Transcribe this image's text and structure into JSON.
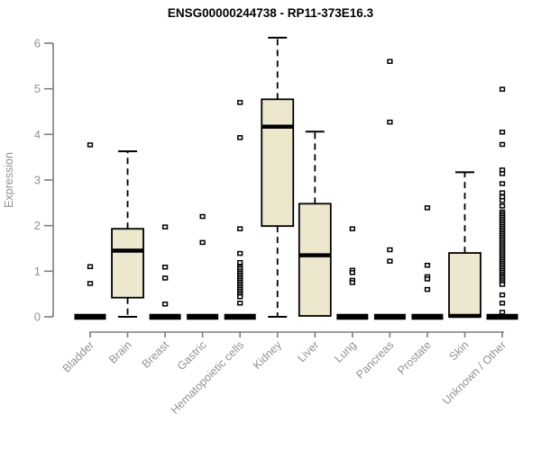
{
  "title": "ENSG00000244738 - RP11-373E16.3",
  "y_axis": {
    "label": "Expression"
  },
  "colors": {
    "box_fill": "#EDE7CE",
    "box_stroke": "#000000",
    "median": "#000000",
    "whisker": "#000000",
    "outlier_stroke": "#000000",
    "outlier_fill": "#ffffff",
    "axis_line": "#7d7d7d",
    "axis_text": "#929292",
    "title": "#000000",
    "background": "#ffffff"
  },
  "chart_data": {
    "type": "boxplot",
    "title": "ENSG00000244738 - RP11-373E16.3",
    "xlabel": "",
    "ylabel": "Expression",
    "ylim": [
      0,
      6
    ],
    "y_ticks": [
      0,
      1,
      2,
      3,
      4,
      5,
      6
    ],
    "grid": false,
    "legend": false,
    "categories": [
      "Bladder",
      "Brain",
      "Breast",
      "Gastric",
      "Hematopoietic cells",
      "Kidney",
      "Liver",
      "Lung",
      "Pancreas",
      "Prostate",
      "Skin",
      "Unknown / Other"
    ],
    "series": [
      {
        "name": "Bladder",
        "whisker_low": 0,
        "q1": 0,
        "median": 0,
        "q3": 0,
        "whisker_high": 0,
        "outliers": [
          3.77,
          1.1,
          0.73
        ]
      },
      {
        "name": "Brain",
        "whisker_low": 0,
        "q1": 0.42,
        "median": 1.45,
        "q3": 1.93,
        "whisker_high": 3.63,
        "outliers": []
      },
      {
        "name": "Breast",
        "whisker_low": 0,
        "q1": 0,
        "median": 0,
        "q3": 0,
        "whisker_high": 0,
        "outliers": [
          1.97,
          1.09,
          0.85,
          0.28
        ]
      },
      {
        "name": "Gastric",
        "whisker_low": 0,
        "q1": 0,
        "median": 0,
        "q3": 0,
        "whisker_high": 0,
        "outliers": [
          2.2,
          1.63
        ]
      },
      {
        "name": "Hematopoietic cells",
        "whisker_low": 0,
        "q1": 0,
        "median": 0,
        "q3": 0,
        "whisker_high": 0,
        "outliers": [
          4.7,
          3.93,
          1.93,
          1.39,
          1.19,
          1.09,
          1.05,
          1.0,
          0.96,
          0.92,
          0.88,
          0.84,
          0.8,
          0.76,
          0.72,
          0.68,
          0.64,
          0.6,
          0.56,
          0.52,
          0.48,
          0.44,
          0.3
        ]
      },
      {
        "name": "Kidney",
        "whisker_low": 0,
        "q1": 1.99,
        "median": 4.17,
        "q3": 4.77,
        "whisker_high": 6.12,
        "outliers": []
      },
      {
        "name": "Liver",
        "whisker_low": 0,
        "q1": 0.02,
        "median": 1.35,
        "q3": 2.48,
        "whisker_high": 4.06,
        "outliers": []
      },
      {
        "name": "Lung",
        "whisker_low": 0,
        "q1": 0,
        "median": 0,
        "q3": 0,
        "whisker_high": 0,
        "outliers": [
          1.93,
          1.02,
          0.97,
          0.8,
          0.75
        ]
      },
      {
        "name": "Pancreas",
        "whisker_low": 0,
        "q1": 0,
        "median": 0,
        "q3": 0,
        "whisker_high": 0,
        "outliers": [
          5.6,
          4.27,
          1.47,
          1.22
        ]
      },
      {
        "name": "Prostate",
        "whisker_low": 0,
        "q1": 0,
        "median": 0,
        "q3": 0,
        "whisker_high": 0,
        "outliers": [
          2.39,
          1.13,
          0.88,
          0.83,
          0.6
        ]
      },
      {
        "name": "Skin",
        "whisker_low": 0,
        "q1": 0,
        "median": 0.02,
        "q3": 1.4,
        "whisker_high": 3.17,
        "outliers": []
      },
      {
        "name": "Unknown / Other",
        "whisker_low": 0,
        "q1": 0,
        "median": 0,
        "q3": 0,
        "whisker_high": 0,
        "outliers": [
          4.99,
          4.05,
          3.78,
          3.22,
          3.14,
          2.92,
          2.72,
          2.63,
          2.55,
          2.43,
          2.3,
          2.26,
          2.22,
          2.18,
          2.14,
          2.1,
          2.06,
          2.02,
          1.98,
          1.94,
          1.9,
          1.86,
          1.82,
          1.78,
          1.74,
          1.7,
          1.66,
          1.62,
          1.58,
          1.54,
          1.5,
          1.46,
          1.42,
          1.38,
          1.34,
          1.3,
          1.26,
          1.22,
          1.18,
          1.14,
          1.1,
          1.06,
          1.02,
          0.98,
          0.94,
          0.9,
          0.87,
          0.83,
          0.79,
          0.75,
          0.71,
          0.48,
          0.3,
          0.1
        ]
      }
    ]
  }
}
